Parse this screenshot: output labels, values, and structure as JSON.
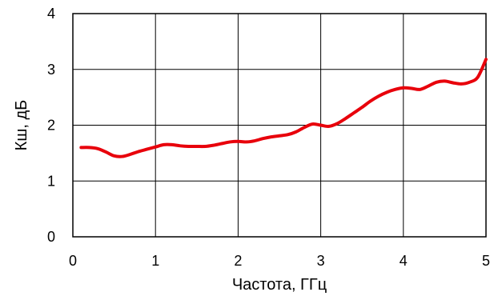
{
  "chart_data": {
    "type": "line",
    "title": "",
    "xlabel": "Частота, ГГц",
    "ylabel": "Кш, дБ",
    "xlim": [
      0,
      5
    ],
    "ylim": [
      0,
      4
    ],
    "x_ticks": [
      "0",
      "1",
      "2",
      "3",
      "4",
      "5"
    ],
    "y_ticks": [
      "0",
      "1",
      "2",
      "3",
      "4"
    ],
    "grid": true,
    "legend": "none",
    "series": [
      {
        "color": "#e8000b",
        "x": [
          0.1,
          0.2,
          0.3,
          0.4,
          0.5,
          0.6,
          0.7,
          0.8,
          0.9,
          1.0,
          1.1,
          1.2,
          1.3,
          1.4,
          1.5,
          1.6,
          1.7,
          1.8,
          1.9,
          2.0,
          2.1,
          2.2,
          2.3,
          2.4,
          2.5,
          2.6,
          2.7,
          2.8,
          2.9,
          3.0,
          3.1,
          3.2,
          3.3,
          3.4,
          3.5,
          3.6,
          3.7,
          3.8,
          3.9,
          4.0,
          4.1,
          4.2,
          4.3,
          4.4,
          4.5,
          4.6,
          4.7,
          4.8,
          4.9,
          5.0
        ],
        "y": [
          1.6,
          1.6,
          1.58,
          1.52,
          1.45,
          1.44,
          1.48,
          1.53,
          1.57,
          1.61,
          1.65,
          1.65,
          1.63,
          1.62,
          1.62,
          1.62,
          1.64,
          1.67,
          1.7,
          1.71,
          1.7,
          1.72,
          1.76,
          1.79,
          1.81,
          1.83,
          1.88,
          1.96,
          2.02,
          2.0,
          1.98,
          2.03,
          2.12,
          2.22,
          2.32,
          2.43,
          2.52,
          2.59,
          2.64,
          2.67,
          2.66,
          2.64,
          2.7,
          2.77,
          2.79,
          2.76,
          2.74,
          2.77,
          2.86,
          3.18
        ]
      }
    ]
  }
}
